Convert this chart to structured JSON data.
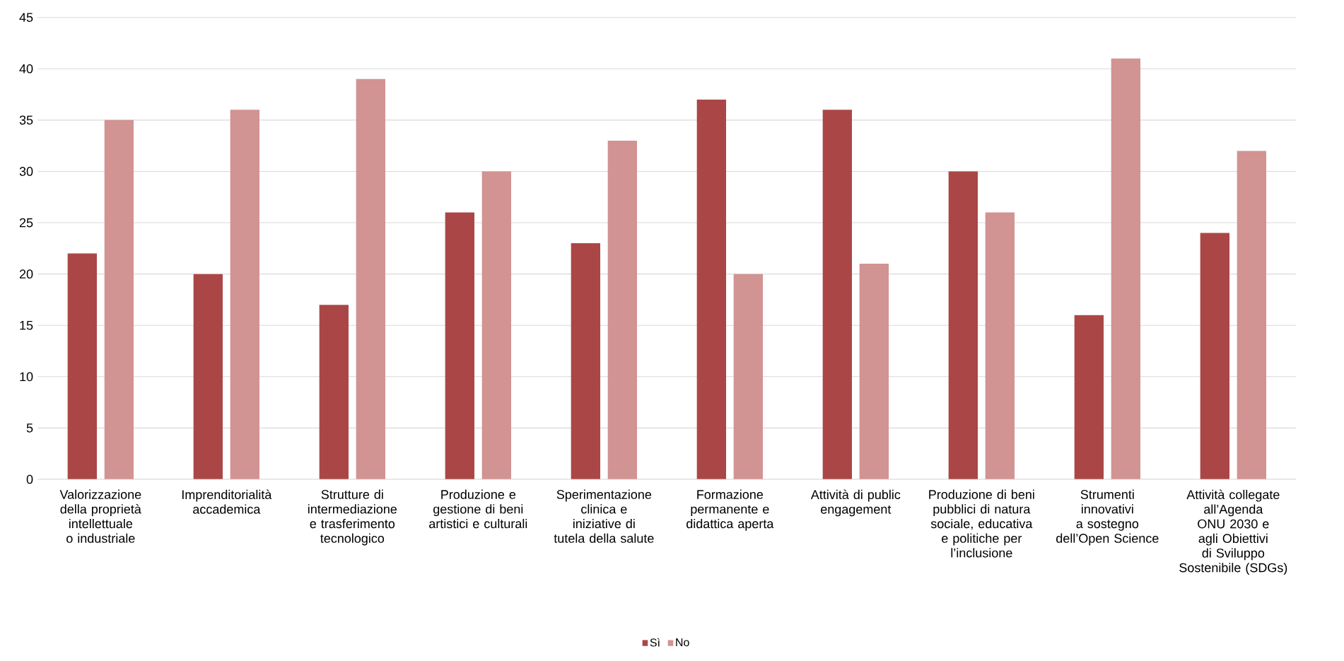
{
  "chart_data": {
    "type": "bar",
    "categories": [
      "Valorizzazione della proprietà intellettuale o industriale",
      "Imprenditorialità accademica",
      "Strutture di intermediazione e trasferimento tecnologico",
      "Produzione e gestione di beni artistici e culturali",
      "Sperimentazione clinica e iniziative di tutela della salute",
      "Formazione permanente e didattica aperta",
      "Attività di public engagement",
      "Produzione di beni pubblici di natura sociale, educativa e politiche per l’inclusione",
      "Strumenti innovativi a sostegno dell’Open Science",
      "Attività collegate all’Agenda ONU 2030 e agli Obiettivi di Sviluppo Sostenibile (SDGs)"
    ],
    "series": [
      {
        "name": "Sì",
        "color": "#aa4746",
        "values": [
          22,
          20,
          17,
          26,
          23,
          37,
          36,
          30,
          16,
          24
        ]
      },
      {
        "name": "No",
        "color": "#d29393",
        "values": [
          35,
          36,
          39,
          30,
          33,
          20,
          21,
          26,
          41,
          32
        ]
      }
    ],
    "ylim": [
      0,
      45
    ],
    "yticks": [
      0,
      5,
      10,
      15,
      20,
      25,
      30,
      35,
      40,
      45
    ],
    "grid": "y",
    "legend": "bottom"
  }
}
